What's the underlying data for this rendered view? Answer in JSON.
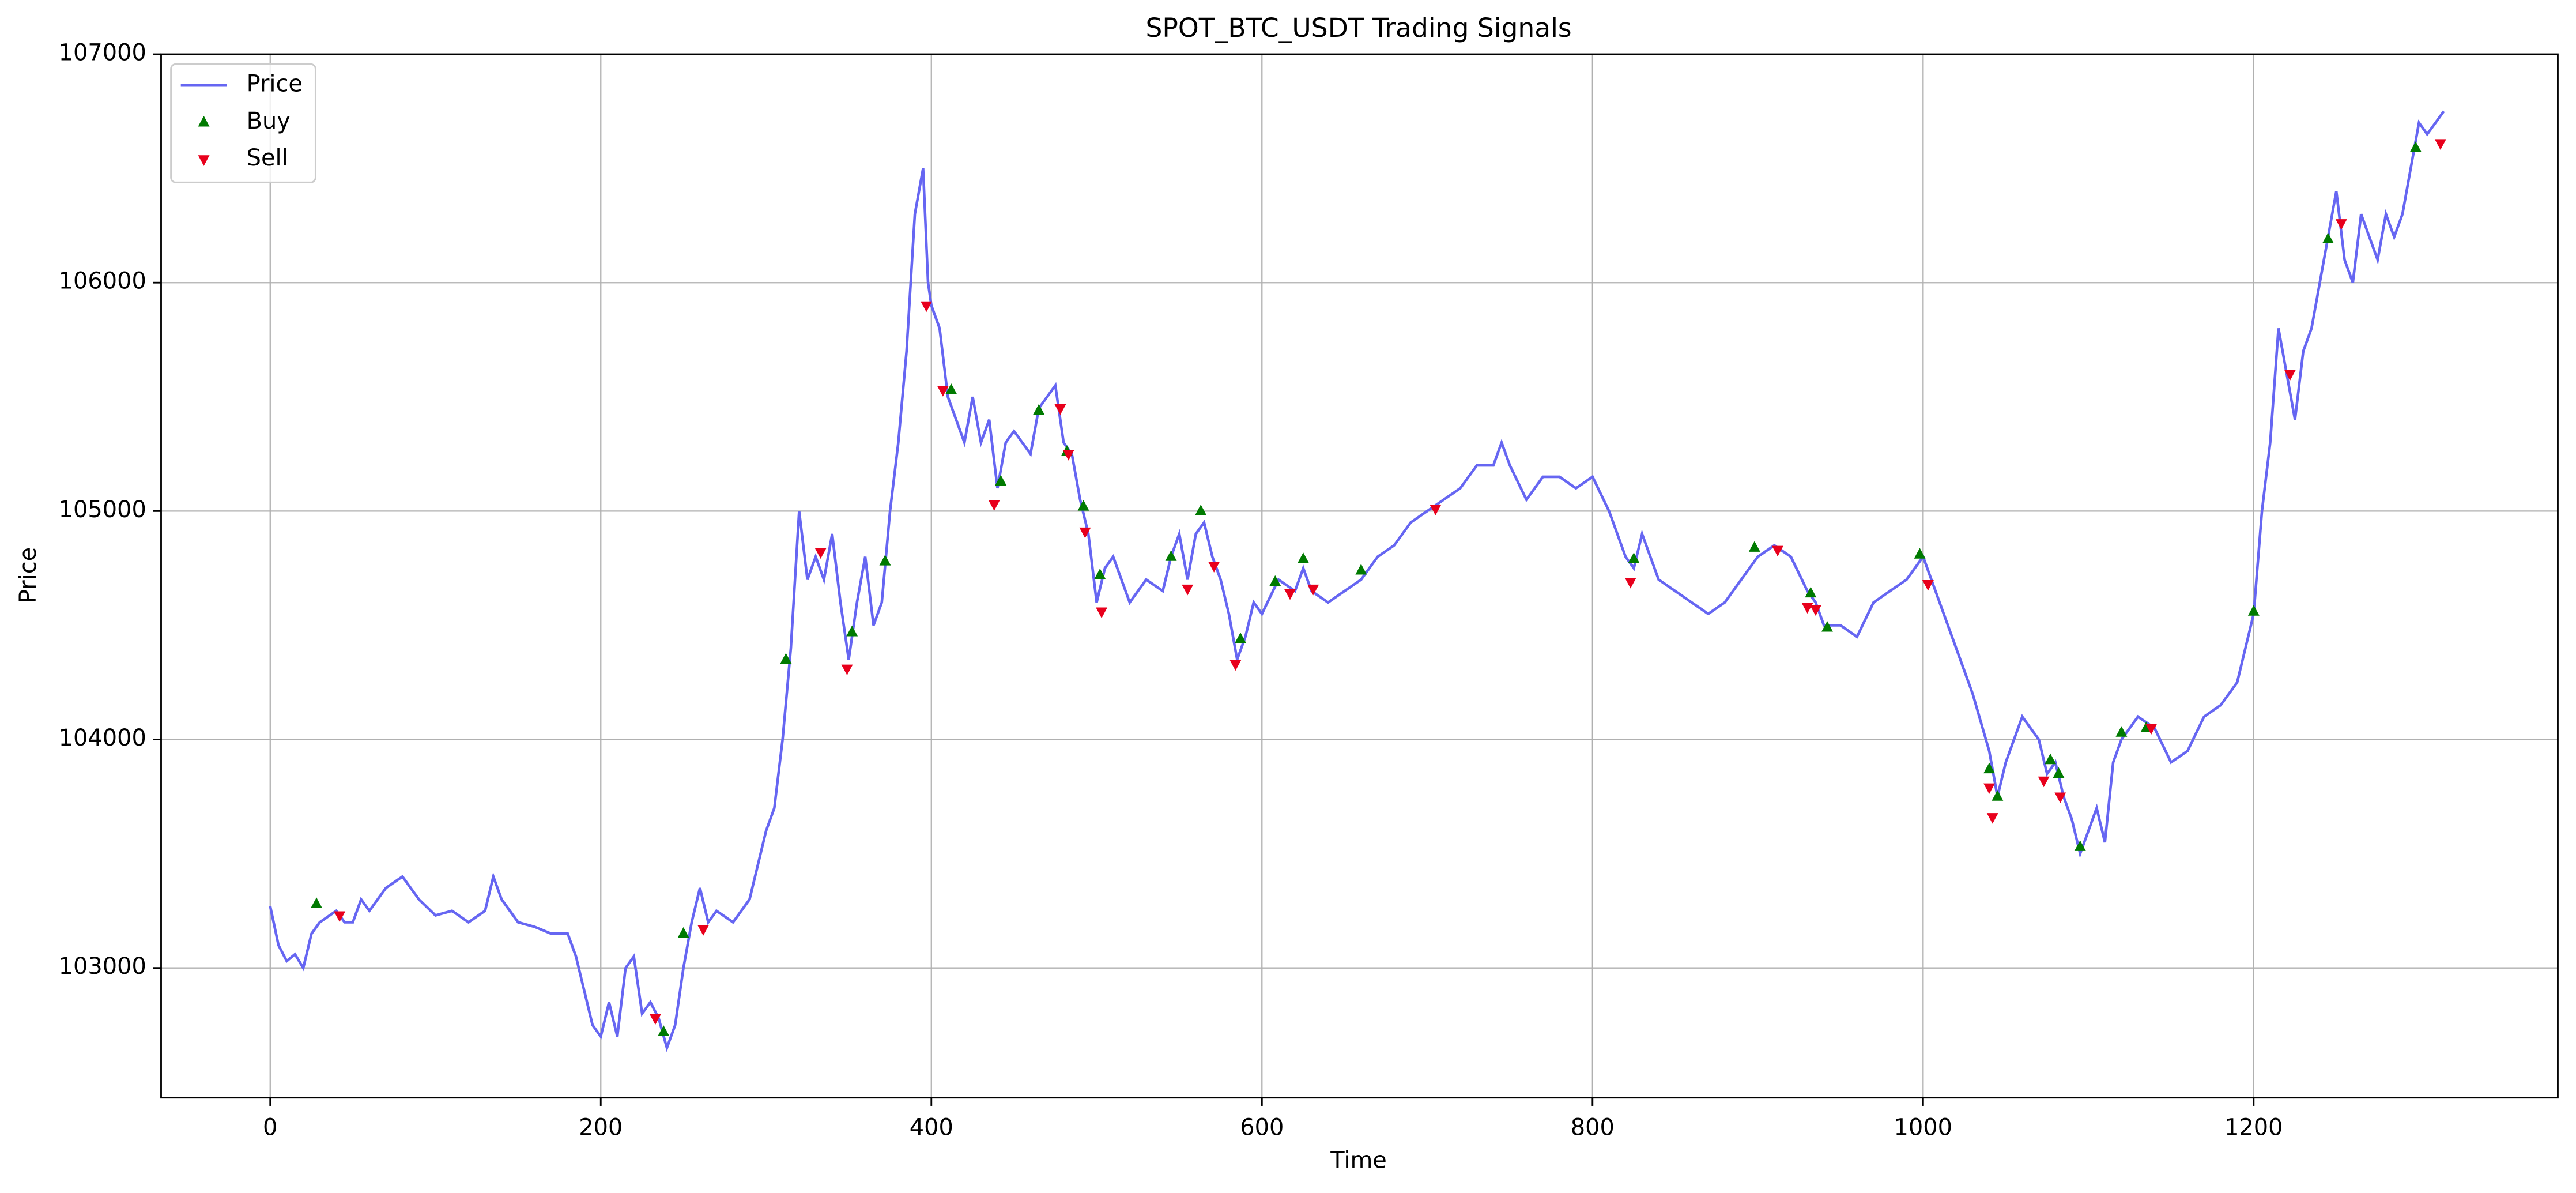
{
  "chart_data": {
    "type": "line",
    "title": "SPOT_BTC_USDT Trading Signals",
    "x_label": "Time",
    "y_label": "Price",
    "xlim": [
      -66,
      1384
    ],
    "ylim": [
      102432,
      107000
    ],
    "xticks": [
      0,
      200,
      400,
      600,
      800,
      1000,
      1200
    ],
    "yticks": [
      103000,
      104000,
      105000,
      106000,
      107000
    ],
    "grid": true,
    "legend": "upper left",
    "series": [
      {
        "name": "Price",
        "type": "line",
        "color": "#6666f2",
        "x": [
          0,
          5,
          10,
          15,
          20,
          25,
          30,
          40,
          45,
          50,
          55,
          60,
          70,
          80,
          90,
          100,
          110,
          120,
          130,
          135,
          140,
          150,
          160,
          170,
          180,
          185,
          190,
          195,
          200,
          205,
          210,
          215,
          220,
          225,
          230,
          235,
          240,
          245,
          250,
          255,
          260,
          265,
          270,
          280,
          290,
          300,
          305,
          310,
          315,
          320,
          325,
          330,
          335,
          340,
          345,
          350,
          355,
          360,
          365,
          370,
          375,
          380,
          385,
          390,
          395,
          398,
          400,
          405,
          410,
          415,
          420,
          425,
          430,
          435,
          440,
          445,
          450,
          460,
          465,
          470,
          475,
          480,
          485,
          490,
          495,
          500,
          505,
          510,
          520,
          530,
          540,
          545,
          550,
          555,
          560,
          565,
          570,
          575,
          580,
          585,
          590,
          595,
          600,
          610,
          620,
          625,
          630,
          640,
          650,
          660,
          670,
          680,
          690,
          700,
          710,
          720,
          730,
          740,
          745,
          750,
          760,
          770,
          780,
          790,
          800,
          810,
          820,
          825,
          830,
          840,
          850,
          860,
          870,
          880,
          890,
          900,
          910,
          920,
          930,
          935,
          940,
          950,
          960,
          970,
          980,
          990,
          1000,
          1005,
          1010,
          1020,
          1030,
          1040,
          1045,
          1050,
          1060,
          1070,
          1075,
          1080,
          1085,
          1090,
          1095,
          1100,
          1105,
          1110,
          1115,
          1120,
          1130,
          1140,
          1150,
          1160,
          1170,
          1180,
          1190,
          1200,
          1205,
          1210,
          1215,
          1220,
          1225,
          1230,
          1235,
          1240,
          1245,
          1250,
          1255,
          1260,
          1265,
          1270,
          1275,
          1280,
          1285,
          1290,
          1295,
          1300,
          1305,
          1310,
          1315
        ],
        "values": [
          103270,
          103100,
          103030,
          103060,
          103000,
          103150,
          103200,
          103250,
          103200,
          103200,
          103300,
          103250,
          103350,
          103400,
          103300,
          103230,
          103250,
          103200,
          103250,
          103400,
          103300,
          103200,
          103180,
          103150,
          103150,
          103050,
          102900,
          102750,
          102700,
          102850,
          102700,
          103000,
          103050,
          102800,
          102850,
          102780,
          102650,
          102750,
          103000,
          103200,
          103350,
          103200,
          103250,
          103200,
          103300,
          103600,
          103700,
          104000,
          104400,
          105000,
          104700,
          104800,
          104700,
          104900,
          104600,
          104350,
          104600,
          104800,
          104500,
          104600,
          105000,
          105300,
          105700,
          106300,
          106500,
          106000,
          105900,
          105800,
          105500,
          105400,
          105300,
          105500,
          105300,
          105400,
          105100,
          105300,
          105350,
          105250,
          105450,
          105500,
          105550,
          105300,
          105250,
          105050,
          104900,
          104600,
          104750,
          104800,
          104600,
          104700,
          104650,
          104800,
          104900,
          104700,
          104900,
          104950,
          104800,
          104700,
          104550,
          104350,
          104450,
          104600,
          104550,
          104700,
          104650,
          104750,
          104650,
          104600,
          104650,
          104700,
          104800,
          104850,
          104950,
          105000,
          105050,
          105100,
          105200,
          105200,
          105300,
          105200,
          105050,
          105150,
          105150,
          105100,
          105150,
          105000,
          104800,
          104750,
          104900,
          104700,
          104650,
          104600,
          104550,
          104600,
          104700,
          104800,
          104850,
          104800,
          104650,
          104600,
          104500,
          104500,
          104450,
          104600,
          104650,
          104700,
          104800,
          104700,
          104600,
          104400,
          104200,
          103950,
          103750,
          103900,
          104100,
          104000,
          103850,
          103900,
          103750,
          103650,
          103500,
          103600,
          103700,
          103550,
          103900,
          104000,
          104100,
          104050,
          103900,
          103950,
          104100,
          104150,
          104250,
          104550,
          105000,
          105300,
          105800,
          105600,
          105400,
          105700,
          105800,
          106000,
          106200,
          106400,
          106100,
          106000,
          106300,
          106200,
          106100,
          106300,
          106200,
          106300,
          106500,
          106700,
          106650,
          106700,
          106750
        ]
      },
      {
        "name": "Buy",
        "type": "scatter",
        "marker": "triangle-up",
        "color": "#007a00",
        "x": [
          28,
          238,
          250,
          312,
          352,
          372,
          412,
          442,
          465,
          482,
          492,
          502,
          545,
          563,
          587,
          608,
          625,
          660,
          825,
          898,
          932,
          942,
          998,
          1040,
          1045,
          1077,
          1082,
          1095,
          1120,
          1135,
          1200,
          1245,
          1298
        ],
        "values": [
          103280,
          102720,
          103150,
          104350,
          104470,
          104780,
          105530,
          105130,
          105440,
          105260,
          105020,
          104720,
          104800,
          105000,
          104440,
          104690,
          104790,
          104740,
          104790,
          104840,
          104640,
          104490,
          104810,
          103870,
          103750,
          103910,
          103850,
          103530,
          104030,
          104050,
          104560,
          106190,
          106590
        ]
      },
      {
        "name": "Sell",
        "type": "scatter",
        "marker": "triangle-down",
        "color": "#e8001c",
        "x": [
          42,
          233,
          262,
          333,
          349,
          397,
          407,
          438,
          478,
          483,
          493,
          503,
          555,
          571,
          584,
          617,
          631,
          705,
          823,
          912,
          930,
          935,
          1003,
          1040,
          1042,
          1073,
          1083,
          1138,
          1222,
          1253,
          1313
        ],
        "values": [
          103230,
          102780,
          103170,
          104820,
          104310,
          105900,
          105530,
          105030,
          105450,
          105250,
          104910,
          104560,
          104660,
          104760,
          104330,
          104640,
          104660,
          105010,
          104690,
          104830,
          104580,
          104570,
          104680,
          103790,
          103660,
          103820,
          103750,
          104050,
          105600,
          106260,
          106610
        ]
      }
    ]
  }
}
